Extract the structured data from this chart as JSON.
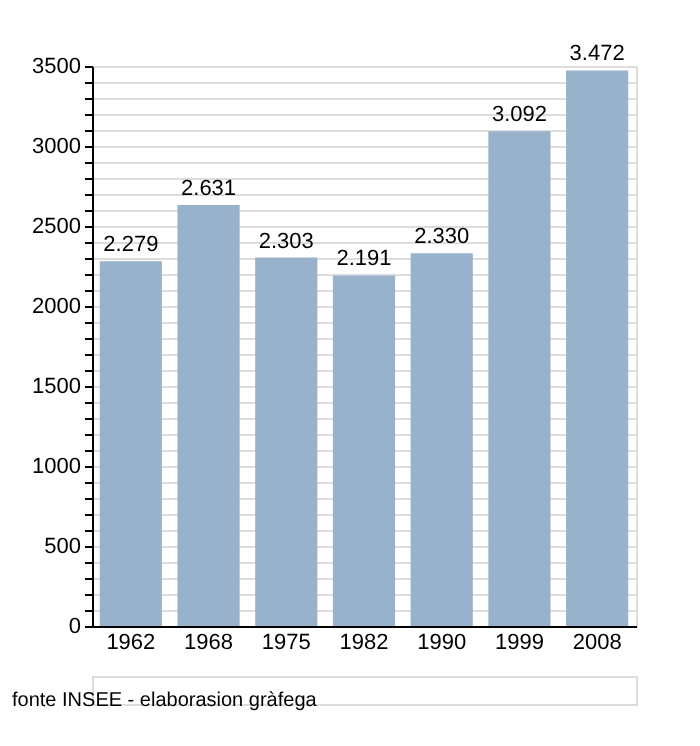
{
  "chart_data": {
    "type": "bar",
    "categories": [
      "1962",
      "1968",
      "1975",
      "1982",
      "1990",
      "1999",
      "2008"
    ],
    "values": [
      2279,
      2631,
      2303,
      2191,
      2330,
      3092,
      3472
    ],
    "value_labels": [
      "2.279",
      "2.631",
      "2.303",
      "2.191",
      "2.330",
      "3.092",
      "3.472"
    ],
    "color": "#98b2cc",
    "ylim": [
      0,
      3500
    ],
    "yticks": [
      0,
      {
        "value": 100,
        "label": null
      },
      {
        "value": 200,
        "label": null
      },
      {
        "value": 300,
        "label": null
      },
      {
        "value": 400,
        "label": null
      },
      500,
      {
        "value": 600,
        "label": null
      },
      {
        "value": 700,
        "label": null
      },
      {
        "value": 800,
        "label": null
      },
      {
        "value": 900,
        "label": null
      },
      1000,
      {
        "value": 1100,
        "label": null
      },
      {
        "value": 1200,
        "label": null
      },
      {
        "value": 1300,
        "label": null
      },
      {
        "value": 1400,
        "label": null
      },
      1500,
      {
        "value": 1600,
        "label": null
      },
      {
        "value": 1700,
        "label": null
      },
      {
        "value": 1800,
        "label": null
      },
      {
        "value": 1900,
        "label": null
      },
      2000,
      {
        "value": 2100,
        "label": null
      },
      {
        "value": 2200,
        "label": null
      },
      {
        "value": 2300,
        "label": null
      },
      {
        "value": 2400,
        "label": null
      },
      2500,
      {
        "value": 2600,
        "label": null
      },
      {
        "value": 2700,
        "label": null
      },
      {
        "value": 2800,
        "label": null
      },
      {
        "value": 2900,
        "label": null
      },
      3000,
      {
        "value": 3100,
        "label": null
      },
      {
        "value": 3200,
        "label": null
      },
      {
        "value": 3300,
        "label": null
      },
      {
        "value": 3400,
        "label": null
      },
      3500
    ],
    "grid": "y",
    "annotations": [
      "fonte INSEE - elaborasion gràfega"
    ]
  }
}
